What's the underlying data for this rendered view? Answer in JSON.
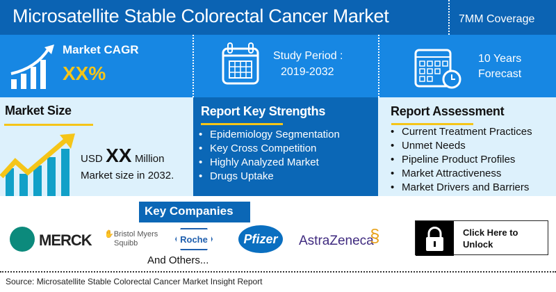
{
  "header": {
    "title": "Microsatellite Stable Colorectal Cancer Market",
    "coverage": "7MM Coverage"
  },
  "stats": {
    "cagr_label": "Market CAGR",
    "cagr_value": "XX%",
    "study_label": "Study Period :",
    "study_value": "2019-2032",
    "forecast_line1": "10 Years",
    "forecast_line2": "Forecast"
  },
  "market_size": {
    "title": "Market Size",
    "prefix": "USD",
    "value": "XX",
    "unit": "Million",
    "caption": "Market size in 2032."
  },
  "strengths": {
    "title": "Report Key Strengths",
    "items": [
      "Epidemiology Segmentation",
      "Key Cross Competition",
      "Highly Analyzed Market",
      "Drugs Uptake"
    ]
  },
  "assessment": {
    "title": "Report Assessment",
    "items": [
      "Current Treatment Practices",
      "Unmet Needs",
      "Pipeline Product Profiles",
      "Market Attractiveness",
      "Market Drivers and Barriers"
    ]
  },
  "companies": {
    "title": "Key Companies",
    "logos": [
      "MERCK",
      "Bristol Myers",
      "Squibb",
      "Roche",
      "Pfizer",
      "AstraZeneca"
    ],
    "others": "And Others..."
  },
  "unlock": {
    "line1": "Click Here to",
    "line2": "Unlock"
  },
  "source": "Source: Microsatellite Stable Colorectal Cancer Market Insight Report",
  "colors": {
    "header": "#0b63b3",
    "row": "#1787e3",
    "panel": "#0b67b6",
    "light": "#ddf1fc",
    "accent": "#f5c518"
  }
}
